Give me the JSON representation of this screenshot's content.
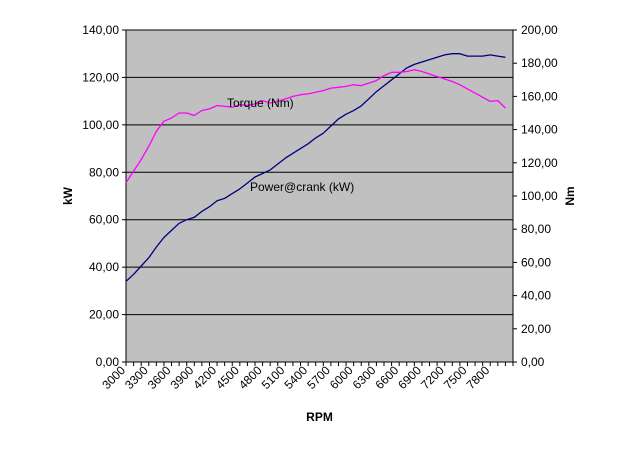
{
  "chart_data": {
    "type": "line",
    "xlabel": "RPM",
    "ylabel_left": "kW",
    "ylabel_right": "Nm",
    "x_tick_labels": [
      "3000",
      "3300",
      "3600",
      "3900",
      "4200",
      "4500",
      "4800",
      "5100",
      "5400",
      "5700",
      "6000",
      "6300",
      "6600",
      "6900",
      "7200",
      "7500",
      "7800"
    ],
    "y_left_tick_labels": [
      "0,00",
      "20,00",
      "40,00",
      "60,00",
      "80,00",
      "100,00",
      "120,00",
      "140,00"
    ],
    "y_right_tick_labels": [
      "0,00",
      "20,00",
      "40,00",
      "60,00",
      "80,00",
      "100,00",
      "120,00",
      "140,00",
      "160,00",
      "180,00",
      "200,00"
    ],
    "xlim": [
      3000,
      8100
    ],
    "ylim_left": [
      0,
      140
    ],
    "ylim_right": [
      0,
      200
    ],
    "grid": "horizontal",
    "background_color": "#c0c0c0",
    "x": [
      3000,
      3100,
      3200,
      3300,
      3400,
      3500,
      3600,
      3700,
      3800,
      3900,
      4000,
      4100,
      4200,
      4300,
      4400,
      4500,
      4600,
      4700,
      4800,
      4900,
      5000,
      5100,
      5200,
      5300,
      5400,
      5500,
      5600,
      5700,
      5800,
      5900,
      6000,
      6100,
      6200,
      6300,
      6400,
      6500,
      6600,
      6700,
      6800,
      6900,
      7000,
      7100,
      7200,
      7300,
      7400,
      7500,
      7600,
      7700,
      7800,
      7900,
      8000
    ],
    "series": [
      {
        "name": "Power@crank (kW)",
        "axis": "left",
        "color": "#000080",
        "label": "Power@crank (kW)",
        "values": [
          34,
          37,
          40.5,
          44,
          48.5,
          52.5,
          55.5,
          58.5,
          60,
          61,
          63.5,
          65.5,
          68,
          69,
          71,
          73,
          75.5,
          78,
          79.5,
          81,
          83.5,
          86,
          88,
          90,
          92,
          94.5,
          96.5,
          99.5,
          102.5,
          104.5,
          106,
          108,
          111,
          114,
          116.5,
          119,
          121.5,
          124,
          125.5,
          126.5,
          127.5,
          128.5,
          129.5,
          130,
          130,
          129,
          129,
          129,
          129.5,
          129,
          128.5
        ]
      },
      {
        "name": "Torque (Nm)",
        "axis": "right",
        "color": "#ff00ff",
        "label": "Torque (Nm)",
        "values": [
          108,
          115,
          122,
          130,
          139,
          145,
          147,
          150,
          150,
          148.5,
          151.5,
          152.5,
          154.5,
          154,
          153.5,
          155,
          154.5,
          155.5,
          157.5,
          156,
          157,
          158.5,
          160,
          161,
          161.5,
          162.5,
          163.5,
          165,
          165.5,
          166,
          167,
          166.5,
          168,
          169.5,
          172.5,
          174.5,
          174.5,
          175,
          176,
          175,
          173.5,
          172,
          170.5,
          169,
          167,
          164.5,
          162,
          159.5,
          157,
          157.5,
          153
        ]
      }
    ]
  }
}
